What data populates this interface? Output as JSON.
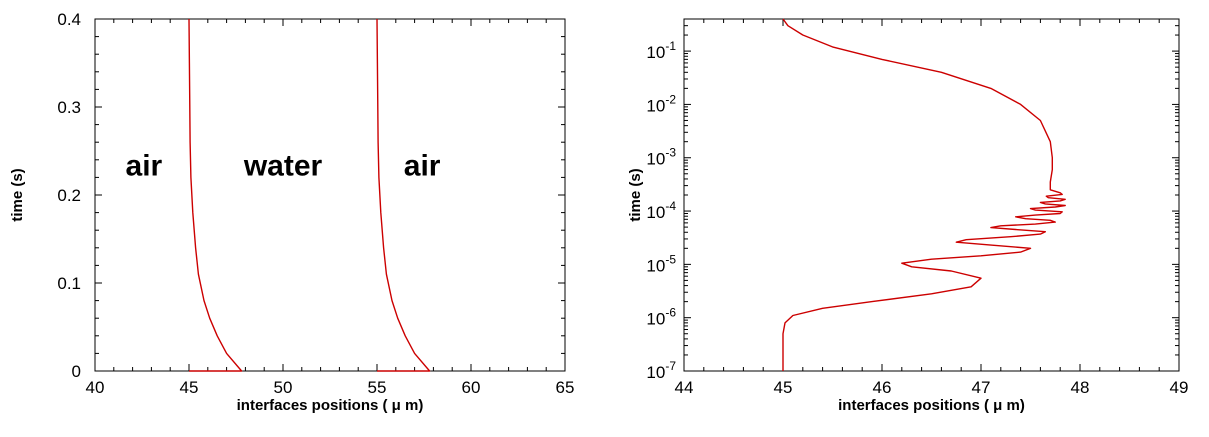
{
  "chart_data": [
    {
      "type": "line",
      "xlabel": "interfaces positions ( μ m)",
      "ylabel": "time (s)",
      "xlim": [
        40,
        65
      ],
      "ylim": [
        0,
        0.4
      ],
      "xticks": [
        "40",
        "45",
        "50",
        "55",
        "60",
        "65"
      ],
      "yticks": [
        "0",
        "0.1",
        "0.2",
        "0.3",
        "0.4"
      ],
      "annotations": [
        {
          "text": "air",
          "x": 42.6,
          "y": 0.22
        },
        {
          "text": "water",
          "x": 50,
          "y": 0.22
        },
        {
          "text": "air",
          "x": 57.4,
          "y": 0.22
        }
      ],
      "series": [
        {
          "color": "#cc0000",
          "x": [
            45.0,
            47.8,
            47.0,
            46.5,
            46.1,
            45.8,
            45.5,
            45.35,
            45.2,
            45.1,
            45.06,
            45.04,
            45.02,
            45.0
          ],
          "y": [
            0.0,
            0.0,
            0.02,
            0.04,
            0.06,
            0.08,
            0.11,
            0.14,
            0.18,
            0.22,
            0.26,
            0.3,
            0.35,
            0.4
          ]
        },
        {
          "color": "#cc0000",
          "x": [
            55.0,
            57.8,
            57.0,
            56.5,
            56.1,
            55.8,
            55.5,
            55.35,
            55.2,
            55.1,
            55.06,
            55.04,
            55.02,
            55.0
          ],
          "y": [
            0.0,
            0.0,
            0.02,
            0.04,
            0.06,
            0.08,
            0.11,
            0.14,
            0.18,
            0.22,
            0.26,
            0.3,
            0.35,
            0.4
          ]
        }
      ]
    },
    {
      "type": "line",
      "xlabel": "interfaces positions ( μ m)",
      "ylabel": "time (s)",
      "xlim": [
        44,
        49
      ],
      "ylim": [
        1e-07,
        0.4
      ],
      "ylog": true,
      "xticks": [
        "44",
        "45",
        "46",
        "47",
        "48",
        "49"
      ],
      "yticks": [
        {
          "base": "10",
          "exp": "-7"
        },
        {
          "base": "10",
          "exp": "-6"
        },
        {
          "base": "10",
          "exp": "-5"
        },
        {
          "base": "10",
          "exp": "-4"
        },
        {
          "base": "10",
          "exp": "-3"
        },
        {
          "base": "10",
          "exp": "-2"
        },
        {
          "base": "10",
          "exp": "-1"
        }
      ],
      "series": [
        {
          "color": "#cc0000",
          "x": [
            45.0,
            45.0,
            45.02,
            45.1,
            45.4,
            45.9,
            46.5,
            46.9,
            47.0,
            46.7,
            46.3,
            46.2,
            46.5,
            47.0,
            47.4,
            47.5,
            47.1,
            46.75,
            46.85,
            47.3,
            47.6,
            47.65,
            47.35,
            47.1,
            47.2,
            47.55,
            47.75,
            47.7,
            47.45,
            47.35,
            47.55,
            47.8,
            47.82,
            47.55,
            47.5,
            47.75,
            47.85,
            47.65,
            47.6,
            47.8,
            47.85,
            47.68,
            47.66,
            47.82,
            47.8,
            47.7,
            47.7,
            47.72,
            47.72,
            47.7,
            47.6,
            47.4,
            47.1,
            46.6,
            46.0,
            45.5,
            45.2,
            45.05,
            45.0
          ],
          "y": [
            1e-07,
            5e-07,
            8e-07,
            1.1e-06,
            1.5e-06,
            2e-06,
            2.8e-06,
            3.8e-06,
            5.5e-06,
            7.5e-06,
            9e-06,
            1.05e-05,
            1.25e-05,
            1.45e-05,
            1.7e-05,
            2e-05,
            2.3e-05,
            2.6e-05,
            2.9e-05,
            3.3e-05,
            3.7e-05,
            4.1e-05,
            4.5e-05,
            4.9e-05,
            5.3e-05,
            5.7e-05,
            6.2e-05,
            6.7e-05,
            7.2e-05,
            7.8e-05,
            8.4e-05,
            9e-05,
            9.7e-05,
            0.000104,
            0.000111,
            0.000119,
            0.000127,
            0.000136,
            0.000145,
            0.000155,
            0.000166,
            0.000178,
            0.00019,
            0.000205,
            0.00022,
            0.00025,
            0.00035,
            0.0006,
            0.001,
            0.002,
            0.005,
            0.01,
            0.02,
            0.04,
            0.07,
            0.12,
            0.2,
            0.3,
            0.4
          ]
        }
      ]
    }
  ]
}
